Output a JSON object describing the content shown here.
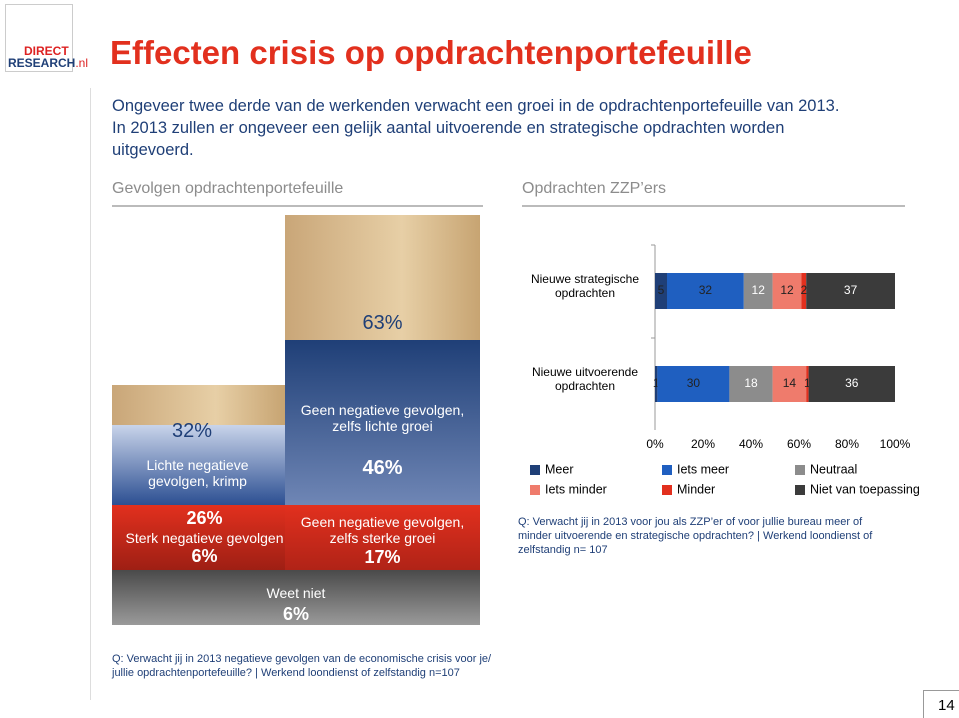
{
  "logo": {
    "line1": "DIRECT",
    "line2": "RESEARCH",
    "suffix": ".nl"
  },
  "title": "Effecten crisis op opdrachtenportefeuille",
  "intro": "Ongeveer twee derde van de werkenden verwacht een groei in de opdrachtenportefeuille van 2013. In 2013 zullen er ongeveer een gelijk aantal uitvoerende en strategische opdrachten worden uitgevoerd.",
  "left": {
    "heading": "Gevolgen opdrachtenportefeuille",
    "total_growth": "63%",
    "light_growth_label": "Geen negatieve gevolgen, zelfs lichte groei",
    "light_growth": "46%",
    "strong_growth_label": "Geen negatieve gevolgen, zelfs sterke groei",
    "strong_growth": "17%",
    "total_negative": "32%",
    "light_negative_label": "Lichte negatieve gevolgen, krimp",
    "light_negative": "26%",
    "strong_negative_label": "Sterk negatieve gevolgen",
    "strong_negative": "6%",
    "unknown_label": "Weet niet",
    "unknown": "6%",
    "footnote": "Q: Verwacht jij in 2013 negatieve gevolgen van de economische crisis voor je/ jullie opdrachtenportefeuille? | Werkend loondienst of zelfstandig n=107"
  },
  "chart_data": {
    "type": "stacked-barh",
    "title": "Opdrachten ZZP’ers",
    "categories": [
      "Nieuwe strategische opdrachten",
      "Nieuwe uitvoerende opdrachten"
    ],
    "series": [
      {
        "name": "Meer",
        "color": "#1f3f77",
        "values": [
          5,
          1
        ]
      },
      {
        "name": "Iets meer",
        "color": "#1f5fc0",
        "values": [
          32,
          30
        ]
      },
      {
        "name": "Neutraal",
        "color": "#8c8c8c",
        "values": [
          12,
          18
        ]
      },
      {
        "name": "Iets minder",
        "color": "#ef7b6c",
        "values": [
          12,
          14
        ]
      },
      {
        "name": "Minder",
        "color": "#e2301e",
        "values": [
          2,
          1
        ]
      },
      {
        "name": "Niet van toepassing",
        "color": "#3b3b3b",
        "values": [
          37,
          36
        ]
      }
    ],
    "xlim": [
      0,
      100
    ],
    "xticks": [
      {
        "value": 0,
        "label": "0%"
      },
      {
        "value": 20,
        "label": "20%"
      },
      {
        "value": 40,
        "label": "40%"
      },
      {
        "value": 60,
        "label": "60%"
      },
      {
        "value": 80,
        "label": "80%"
      },
      {
        "value": 100,
        "label": "100%"
      }
    ],
    "footnote": "Q: Verwacht jij in 2013 voor jou als ZZP’er of voor jullie bureau meer of minder uitvoerende en strategische opdrachten? | Werkend loondienst of zelfstandig n= 107"
  },
  "page_number": "14"
}
